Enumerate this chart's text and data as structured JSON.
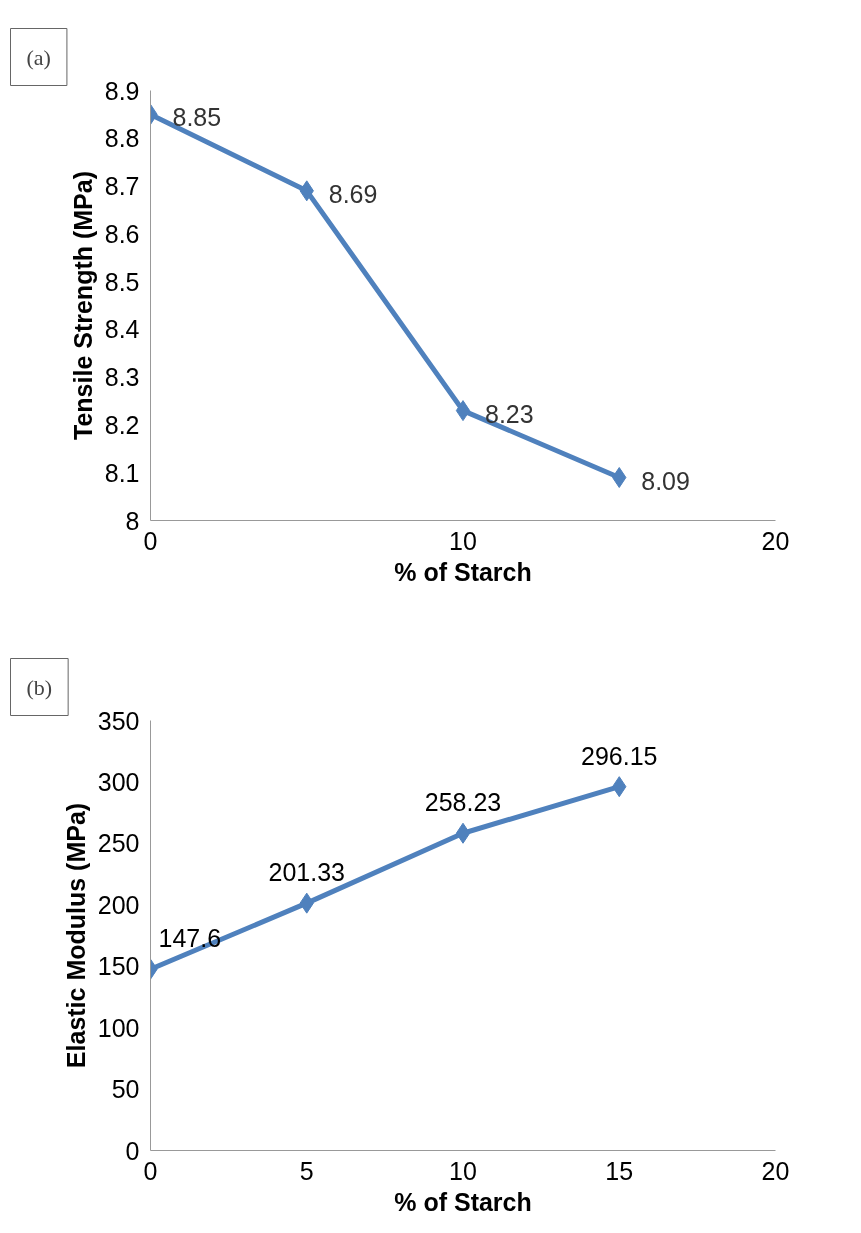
{
  "chart_data": [
    {
      "type": "line",
      "xlabel": "% of Starch",
      "ylabel": "Tensile Strength (MPa)",
      "annotations": [
        "(a)"
      ],
      "x": [
        0,
        5,
        10,
        15
      ],
      "series": [
        {
          "color": "#4f81bd",
          "values": [
            8.85,
            8.69,
            8.23,
            8.09
          ]
        }
      ],
      "xlim": [
        0,
        20
      ],
      "xticks": [
        0,
        10,
        20
      ],
      "ylim": [
        8,
        8.9
      ],
      "yticks": [
        {
          "value": 8,
          "label": "8"
        },
        8.1,
        8.2,
        8.3,
        8.4,
        8.5,
        8.6,
        8.7,
        8.8,
        8.9
      ],
      "marker": "diamond",
      "data_labels": true,
      "grid": false
    },
    {
      "type": "line",
      "xlabel": "% of Starch",
      "ylabel": "Elastic Modulus (MPa)",
      "annotations": [
        "(b)"
      ],
      "x": [
        0,
        5,
        10,
        15
      ],
      "series": [
        {
          "color": "#4f81bd",
          "values": [
            147.6,
            201.33,
            258.23,
            296.15
          ]
        }
      ],
      "xlim": [
        0,
        20
      ],
      "xticks": [
        0,
        5,
        10,
        15,
        20
      ],
      "ylim": [
        0,
        350
      ],
      "yticks": [
        0,
        50,
        100,
        150,
        200,
        250,
        300,
        350
      ],
      "marker": "diamond",
      "data_labels": true,
      "grid": false
    }
  ]
}
